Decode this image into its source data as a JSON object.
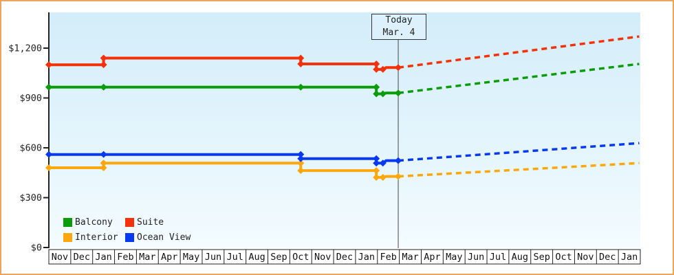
{
  "window": {
    "title": "Cruise price history and forecast chart"
  },
  "chart_data": {
    "type": "line",
    "title": "",
    "grid": false,
    "background": {
      "plot_top_color": "#d3edf9",
      "plot_bottom_color": "#f4fcff",
      "frame_border_color": "#eaa65f"
    },
    "y_axis": {
      "tick_labels": [
        "$0",
        "$300",
        "$600",
        "$900",
        "$1,200"
      ],
      "tick_values": [
        0,
        300,
        600,
        900,
        1200
      ],
      "range": [
        0,
        1430
      ]
    },
    "x_axis": {
      "categories": [
        "Nov",
        "Dec",
        "Jan",
        "Feb",
        "Mar",
        "Apr",
        "May",
        "Jun",
        "Jul",
        "Aug",
        "Sep",
        "Oct",
        "Nov",
        "Dec",
        "Jan",
        "Feb",
        "Mar",
        "Apr",
        "May",
        "Jun",
        "Jul",
        "Aug",
        "Sep",
        "Oct",
        "Nov",
        "Dec",
        "Jan"
      ]
    },
    "today": {
      "line1": "Today",
      "line2": "Mar. 4",
      "x_index": 15.95
    },
    "legend": [
      {
        "label": "Balcony",
        "color": "#0a9c0a"
      },
      {
        "label": "Suite",
        "color": "#f43108"
      },
      {
        "label": "Interior",
        "color": "#fca80d"
      },
      {
        "label": "Ocean View",
        "color": "#0839f2"
      }
    ],
    "series": [
      {
        "name": "Balcony",
        "color": "#0a9c0a",
        "history": [
          {
            "x": 0,
            "value": 965,
            "marker": true
          },
          {
            "x": 2.5,
            "value": 965,
            "marker": true
          },
          {
            "x": 11.5,
            "value": 965,
            "marker": true
          },
          {
            "x": 14.95,
            "value": 965,
            "marker": true
          },
          {
            "x": 14.95,
            "value": 925,
            "marker": true
          },
          {
            "x": 15.25,
            "value": 925,
            "marker": true
          },
          {
            "x": 15.4,
            "value": 930,
            "marker": false
          },
          {
            "x": 15.95,
            "value": 930,
            "marker": true
          }
        ],
        "forecast": [
          {
            "x": 15.95,
            "value": 930
          },
          {
            "x": 26.95,
            "value": 1105
          }
        ]
      },
      {
        "name": "Suite",
        "color": "#f43108",
        "history": [
          {
            "x": 0,
            "value": 1100,
            "marker": true
          },
          {
            "x": 2.5,
            "value": 1100,
            "marker": true
          },
          {
            "x": 2.5,
            "value": 1140,
            "marker": true
          },
          {
            "x": 11.5,
            "value": 1140,
            "marker": true
          },
          {
            "x": 11.5,
            "value": 1105,
            "marker": true
          },
          {
            "x": 14.95,
            "value": 1105,
            "marker": true
          },
          {
            "x": 14.95,
            "value": 1072,
            "marker": true
          },
          {
            "x": 15.25,
            "value": 1072,
            "marker": true
          },
          {
            "x": 15.4,
            "value": 1083,
            "marker": false
          },
          {
            "x": 15.95,
            "value": 1083,
            "marker": true
          }
        ],
        "forecast": [
          {
            "x": 15.95,
            "value": 1083
          },
          {
            "x": 26.95,
            "value": 1270
          }
        ]
      },
      {
        "name": "Interior",
        "color": "#fca80d",
        "history": [
          {
            "x": 0,
            "value": 480,
            "marker": true
          },
          {
            "x": 2.5,
            "value": 480,
            "marker": true
          },
          {
            "x": 2.5,
            "value": 508,
            "marker": true
          },
          {
            "x": 11.5,
            "value": 508,
            "marker": true
          },
          {
            "x": 11.5,
            "value": 463,
            "marker": true
          },
          {
            "x": 14.95,
            "value": 463,
            "marker": true
          },
          {
            "x": 14.95,
            "value": 422,
            "marker": true
          },
          {
            "x": 15.25,
            "value": 422,
            "marker": true
          },
          {
            "x": 15.4,
            "value": 428,
            "marker": false
          },
          {
            "x": 15.95,
            "value": 428,
            "marker": true
          }
        ],
        "forecast": [
          {
            "x": 15.95,
            "value": 428
          },
          {
            "x": 26.95,
            "value": 508
          }
        ]
      },
      {
        "name": "Ocean View",
        "color": "#0839f2",
        "history": [
          {
            "x": 0,
            "value": 560,
            "marker": true
          },
          {
            "x": 2.5,
            "value": 560,
            "marker": true
          },
          {
            "x": 11.5,
            "value": 560,
            "marker": true
          },
          {
            "x": 11.5,
            "value": 535,
            "marker": true
          },
          {
            "x": 14.95,
            "value": 535,
            "marker": true
          },
          {
            "x": 14.95,
            "value": 508,
            "marker": true
          },
          {
            "x": 15.25,
            "value": 508,
            "marker": true
          },
          {
            "x": 15.4,
            "value": 523,
            "marker": false
          },
          {
            "x": 15.95,
            "value": 523,
            "marker": true
          }
        ],
        "forecast": [
          {
            "x": 15.95,
            "value": 523
          },
          {
            "x": 26.95,
            "value": 628
          }
        ]
      }
    ]
  }
}
